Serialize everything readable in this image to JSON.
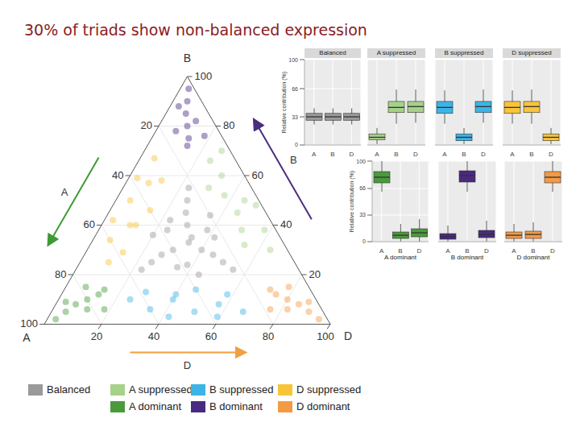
{
  "chart_data": [
    {
      "type": "ternary",
      "title": "30% of triads show non-balanced expression",
      "axes": [
        {
          "name": "A",
          "color": "#3f9a35"
        },
        {
          "name": "B",
          "color": "#4b2d7f"
        },
        {
          "name": "D",
          "color": "#f0a040"
        }
      ],
      "lim": [
        0,
        100
      ],
      "ticks": [
        20,
        40,
        60,
        80,
        100
      ],
      "grid": true,
      "legend": "bottom",
      "series": [
        {
          "name": "Balanced",
          "color": "#9a9a9a",
          "points": [
            [
              33,
              33,
              34
            ],
            [
              40,
              30,
              30
            ],
            [
              30,
              40,
              30
            ],
            [
              30,
              30,
              40
            ],
            [
              45,
              28,
              27
            ],
            [
              28,
              45,
              27
            ],
            [
              27,
              28,
              45
            ],
            [
              38,
              38,
              24
            ],
            [
              24,
              38,
              38
            ],
            [
              38,
              24,
              38
            ],
            [
              50,
              25,
              25
            ],
            [
              25,
              50,
              25
            ],
            [
              25,
              25,
              50
            ],
            [
              35,
              42,
              23
            ],
            [
              42,
              23,
              35
            ],
            [
              23,
              35,
              42
            ],
            [
              44,
              36,
              20
            ],
            [
              20,
              44,
              36
            ],
            [
              36,
              20,
              44
            ],
            [
              31,
              35,
              34
            ],
            [
              22,
              55,
              23
            ],
            [
              55,
              22,
              23
            ],
            [
              23,
              22,
              55
            ]
          ]
        },
        {
          "name": "A suppressed",
          "color": "#a6d18a",
          "points": [
            [
              5,
              50,
              45
            ],
            [
              10,
              45,
              45
            ],
            [
              8,
              60,
              32
            ],
            [
              12,
              38,
              50
            ],
            [
              3,
              70,
              27
            ],
            [
              6,
              30,
              64
            ],
            [
              15,
              55,
              30
            ],
            [
              14,
              32,
              54
            ],
            [
              2,
              48,
              50
            ],
            [
              9,
              66,
              25
            ],
            [
              11,
              52,
              37
            ],
            [
              4,
              38,
              58
            ]
          ]
        },
        {
          "name": "B suppressed",
          "color": "#3db4e6",
          "points": [
            [
              45,
              5,
              50
            ],
            [
              50,
              10,
              40
            ],
            [
              35,
              8,
              57
            ],
            [
              60,
              6,
              34
            ],
            [
              30,
              12,
              58
            ],
            [
              55,
              3,
              42
            ],
            [
              40,
              14,
              46
            ],
            [
              65,
              10,
              25
            ],
            [
              28,
              5,
              67
            ],
            [
              48,
              12,
              40
            ],
            [
              38,
              3,
              59
            ],
            [
              58,
              13,
              29
            ]
          ]
        },
        {
          "name": "D suppressed",
          "color": "#f8c43a",
          "points": [
            [
              45,
              50,
              5
            ],
            [
              50,
              40,
              10
            ],
            [
              35,
              57,
              8
            ],
            [
              60,
              34,
              6
            ],
            [
              30,
              58,
              12
            ],
            [
              55,
              42,
              3
            ],
            [
              40,
              46,
              14
            ],
            [
              65,
              25,
              10
            ],
            [
              28,
              67,
              5
            ],
            [
              48,
              40,
              12
            ],
            [
              38,
              59,
              3
            ],
            [
              58,
              29,
              13
            ]
          ]
        },
        {
          "name": "A dominant",
          "color": "#4a9a3c",
          "points": [
            [
              85,
              8,
              7
            ],
            [
              80,
              10,
              10
            ],
            [
              90,
              5,
              5
            ],
            [
              75,
              12,
              13
            ],
            [
              78,
              15,
              7
            ],
            [
              82,
              6,
              12
            ],
            [
              95,
              2,
              3
            ],
            [
              72,
              14,
              14
            ],
            [
              88,
              9,
              3
            ],
            [
              76,
              6,
              18
            ]
          ]
        },
        {
          "name": "B dominant",
          "color": "#4a2a80",
          "points": [
            [
              8,
              85,
              7
            ],
            [
              10,
              80,
              10
            ],
            [
              5,
              90,
              5
            ],
            [
              12,
              75,
              13
            ],
            [
              15,
              78,
              7
            ],
            [
              6,
              82,
              12
            ],
            [
              2,
              95,
              3
            ],
            [
              14,
              72,
              14
            ],
            [
              9,
              88,
              3
            ],
            [
              6,
              76,
              18
            ]
          ]
        },
        {
          "name": "D dominant",
          "color": "#f39a45",
          "points": [
            [
              7,
              8,
              85
            ],
            [
              10,
              10,
              80
            ],
            [
              5,
              5,
              90
            ],
            [
              13,
              12,
              75
            ],
            [
              7,
              15,
              78
            ],
            [
              12,
              6,
              82
            ],
            [
              3,
              2,
              95
            ],
            [
              14,
              14,
              72
            ],
            [
              3,
              9,
              88
            ],
            [
              18,
              6,
              76
            ]
          ]
        }
      ]
    },
    {
      "type": "box",
      "ylabel": "Relative contribution (%)",
      "categories": [
        "A",
        "B",
        "D"
      ],
      "ylim": [
        0,
        100
      ],
      "yticks": [
        0,
        33,
        66,
        100
      ],
      "grid": true,
      "panels": [
        {
          "name": "Balanced",
          "color": "#9a9a9a",
          "min": [
            24,
            24,
            24
          ],
          "q1": [
            29,
            29,
            29
          ],
          "median": [
            33,
            33,
            33
          ],
          "q3": [
            37,
            37,
            37
          ],
          "max": [
            43,
            43,
            43
          ]
        },
        {
          "name": "A suppressed",
          "color": "#a6d18a",
          "min": [
            1,
            25,
            26
          ],
          "q1": [
            6,
            38,
            38
          ],
          "median": [
            9,
            44,
            45
          ],
          "q3": [
            13,
            51,
            51
          ],
          "max": [
            20,
            65,
            65
          ]
        },
        {
          "name": "B suppressed",
          "color": "#3db4e6",
          "min": [
            25,
            1,
            26
          ],
          "q1": [
            37,
            5,
            38
          ],
          "median": [
            44,
            9,
            45
          ],
          "q3": [
            51,
            13,
            51
          ],
          "max": [
            64,
            20,
            65
          ]
        },
        {
          "name": "D suppressed",
          "color": "#f8c43a",
          "min": [
            25,
            25,
            1
          ],
          "q1": [
            37,
            38,
            5
          ],
          "median": [
            44,
            45,
            9
          ],
          "q3": [
            51,
            51,
            13
          ],
          "max": [
            64,
            65,
            20
          ]
        },
        {
          "name": "A dominant",
          "color": "#4a9a3c",
          "min": [
            62,
            0,
            0
          ],
          "q1": [
            73,
            4,
            6
          ],
          "median": [
            80,
            8,
            11
          ],
          "q3": [
            87,
            12,
            16
          ],
          "max": [
            100,
            22,
            28
          ]
        },
        {
          "name": "B dominant",
          "color": "#4a2a80",
          "min": [
            0,
            62,
            0
          ],
          "q1": [
            3,
            74,
            5
          ],
          "median": [
            6,
            82,
            9
          ],
          "q3": [
            10,
            88,
            14
          ],
          "max": [
            20,
            100,
            26
          ]
        },
        {
          "name": "D dominant",
          "color": "#f39a45",
          "min": [
            0,
            0,
            62
          ],
          "q1": [
            4,
            4,
            73
          ],
          "median": [
            8,
            9,
            80
          ],
          "q3": [
            12,
            13,
            87
          ],
          "max": [
            22,
            24,
            100
          ]
        }
      ]
    }
  ]
}
